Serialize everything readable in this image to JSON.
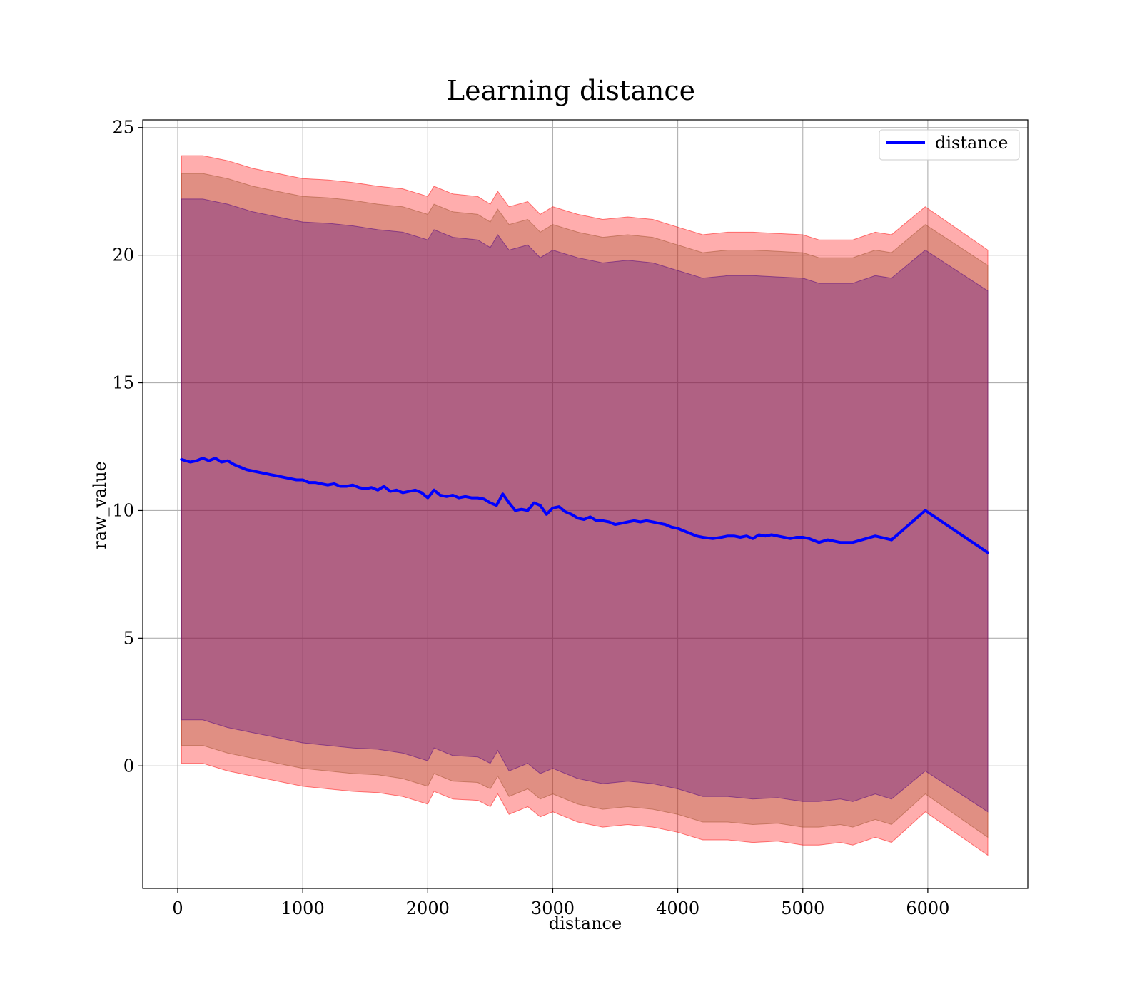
{
  "chart_data": {
    "type": "line",
    "title": "Learning distance",
    "xlabel": "distance",
    "ylabel": "raw_value",
    "xlim": [
      -280,
      6800
    ],
    "ylim": [
      -4.8,
      25.3
    ],
    "xticks": [
      0,
      1000,
      2000,
      3000,
      4000,
      5000,
      6000
    ],
    "yticks": [
      0,
      5,
      10,
      15,
      20,
      25
    ],
    "x_tick_labels": [
      "0",
      "1000",
      "2000",
      "3000",
      "4000",
      "5000",
      "6000"
    ],
    "y_tick_labels": [
      "0",
      "5",
      "10",
      "15",
      "20",
      "25"
    ],
    "grid": true,
    "legend": {
      "position": "upper right",
      "entries": [
        "distance"
      ]
    },
    "colors": {
      "line": "#0000ff",
      "band_outer": "#ff0000",
      "band_middle": "#a0522d",
      "band_inner": "#4b0082",
      "grid": "#b0b0b0"
    },
    "series": [
      {
        "name": "distance",
        "x": [
          30,
          100,
          150,
          200,
          250,
          300,
          350,
          400,
          450,
          500,
          550,
          600,
          650,
          700,
          750,
          800,
          850,
          900,
          950,
          1000,
          1050,
          1100,
          1150,
          1200,
          1250,
          1300,
          1350,
          1400,
          1450,
          1500,
          1550,
          1600,
          1650,
          1700,
          1750,
          1800,
          1850,
          1900,
          1950,
          2000,
          2050,
          2100,
          2150,
          2200,
          2250,
          2300,
          2350,
          2400,
          2450,
          2500,
          2550,
          2600,
          2650,
          2700,
          2750,
          2800,
          2850,
          2900,
          2950,
          3000,
          3050,
          3100,
          3150,
          3200,
          3250,
          3300,
          3350,
          3400,
          3450,
          3500,
          3550,
          3600,
          3650,
          3700,
          3750,
          3800,
          3850,
          3900,
          3950,
          4000,
          4050,
          4100,
          4150,
          4200,
          4280,
          4350,
          4400,
          4450,
          4500,
          4550,
          4600,
          4650,
          4700,
          4750,
          4800,
          4850,
          4900,
          4950,
          5000,
          5050,
          5130,
          5200,
          5300,
          5400,
          5580,
          5710,
          5980,
          6480
        ],
        "y": [
          12.0,
          11.9,
          11.95,
          12.05,
          11.95,
          12.05,
          11.9,
          11.95,
          11.8,
          11.7,
          11.6,
          11.55,
          11.5,
          11.45,
          11.4,
          11.35,
          11.3,
          11.25,
          11.2,
          11.2,
          11.1,
          11.1,
          11.05,
          11.0,
          11.05,
          10.95,
          10.95,
          11.0,
          10.9,
          10.85,
          10.9,
          10.8,
          10.95,
          10.75,
          10.8,
          10.7,
          10.75,
          10.8,
          10.7,
          10.5,
          10.8,
          10.6,
          10.55,
          10.6,
          10.5,
          10.55,
          10.5,
          10.5,
          10.45,
          10.3,
          10.2,
          10.65,
          10.3,
          10.0,
          10.05,
          10.0,
          10.3,
          10.2,
          9.85,
          10.1,
          10.15,
          9.95,
          9.85,
          9.7,
          9.65,
          9.75,
          9.6,
          9.6,
          9.55,
          9.45,
          9.5,
          9.55,
          9.6,
          9.55,
          9.6,
          9.55,
          9.5,
          9.45,
          9.35,
          9.3,
          9.2,
          9.1,
          9.0,
          8.95,
          8.9,
          8.95,
          9.0,
          9.0,
          8.95,
          9.0,
          8.9,
          9.05,
          9.0,
          9.05,
          9.0,
          8.95,
          8.9,
          8.95,
          8.95,
          8.9,
          8.75,
          8.85,
          8.75,
          8.75,
          9.0,
          8.85,
          10.0,
          8.35
        ]
      }
    ],
    "bands": [
      {
        "level": "outer",
        "x": [
          30,
          200,
          400,
          600,
          800,
          1000,
          1200,
          1400,
          1600,
          1800,
          2000,
          2050,
          2200,
          2400,
          2500,
          2560,
          2650,
          2800,
          2900,
          3000,
          3200,
          3400,
          3600,
          3800,
          4000,
          4200,
          4400,
          4600,
          4800,
          5000,
          5130,
          5300,
          5400,
          5580,
          5710,
          5980,
          6480
        ],
        "upper": [
          23.9,
          23.9,
          23.7,
          23.4,
          23.2,
          23.0,
          22.95,
          22.85,
          22.7,
          22.6,
          22.3,
          22.7,
          22.4,
          22.3,
          22.0,
          22.5,
          21.9,
          22.1,
          21.6,
          21.9,
          21.6,
          21.4,
          21.5,
          21.4,
          21.1,
          20.8,
          20.9,
          20.9,
          20.85,
          20.8,
          20.6,
          20.6,
          20.6,
          20.9,
          20.8,
          21.9,
          20.2
        ],
        "lower": [
          0.1,
          0.1,
          -0.2,
          -0.4,
          -0.6,
          -0.8,
          -0.9,
          -1.0,
          -1.05,
          -1.2,
          -1.5,
          -1.0,
          -1.3,
          -1.35,
          -1.6,
          -1.1,
          -1.9,
          -1.6,
          -2.0,
          -1.8,
          -2.2,
          -2.4,
          -2.3,
          -2.4,
          -2.6,
          -2.9,
          -2.9,
          -3.0,
          -2.95,
          -3.1,
          -3.1,
          -3.0,
          -3.1,
          -2.8,
          -3.0,
          -1.8,
          -3.5
        ]
      },
      {
        "level": "middle",
        "x": [
          30,
          200,
          400,
          600,
          800,
          1000,
          1200,
          1400,
          1600,
          1800,
          2000,
          2050,
          2200,
          2400,
          2500,
          2560,
          2650,
          2800,
          2900,
          3000,
          3200,
          3400,
          3600,
          3800,
          4000,
          4200,
          4400,
          4600,
          4800,
          5000,
          5130,
          5300,
          5400,
          5580,
          5710,
          5980,
          6480
        ],
        "upper": [
          23.2,
          23.2,
          23.0,
          22.7,
          22.5,
          22.3,
          22.25,
          22.15,
          22.0,
          21.9,
          21.6,
          22.0,
          21.7,
          21.6,
          21.3,
          21.8,
          21.2,
          21.4,
          20.9,
          21.2,
          20.9,
          20.7,
          20.8,
          20.7,
          20.4,
          20.1,
          20.2,
          20.2,
          20.15,
          20.1,
          19.9,
          19.9,
          19.9,
          20.2,
          20.1,
          21.2,
          19.6
        ],
        "lower": [
          0.8,
          0.8,
          0.5,
          0.3,
          0.1,
          -0.1,
          -0.2,
          -0.3,
          -0.35,
          -0.5,
          -0.8,
          -0.3,
          -0.6,
          -0.65,
          -0.9,
          -0.4,
          -1.2,
          -0.9,
          -1.3,
          -1.1,
          -1.5,
          -1.7,
          -1.6,
          -1.7,
          -1.9,
          -2.2,
          -2.2,
          -2.3,
          -2.25,
          -2.4,
          -2.4,
          -2.3,
          -2.4,
          -2.1,
          -2.3,
          -1.1,
          -2.8
        ]
      },
      {
        "level": "inner",
        "x": [
          30,
          200,
          400,
          600,
          800,
          1000,
          1200,
          1400,
          1600,
          1800,
          2000,
          2050,
          2200,
          2400,
          2500,
          2560,
          2650,
          2800,
          2900,
          3000,
          3200,
          3400,
          3600,
          3800,
          4000,
          4200,
          4400,
          4600,
          4800,
          5000,
          5130,
          5300,
          5400,
          5580,
          5710,
          5980,
          6480
        ],
        "upper": [
          22.2,
          22.2,
          22.0,
          21.7,
          21.5,
          21.3,
          21.25,
          21.15,
          21.0,
          20.9,
          20.6,
          21.0,
          20.7,
          20.6,
          20.3,
          20.8,
          20.2,
          20.4,
          19.9,
          20.2,
          19.9,
          19.7,
          19.8,
          19.7,
          19.4,
          19.1,
          19.2,
          19.2,
          19.15,
          19.1,
          18.9,
          18.9,
          18.9,
          19.2,
          19.1,
          20.2,
          18.6
        ],
        "lower": [
          1.8,
          1.8,
          1.5,
          1.3,
          1.1,
          0.9,
          0.8,
          0.7,
          0.65,
          0.5,
          0.2,
          0.7,
          0.4,
          0.35,
          0.1,
          0.6,
          -0.2,
          0.1,
          -0.3,
          -0.1,
          -0.5,
          -0.7,
          -0.6,
          -0.7,
          -0.9,
          -1.2,
          -1.2,
          -1.3,
          -1.25,
          -1.4,
          -1.4,
          -1.3,
          -1.4,
          -1.1,
          -1.3,
          -0.2,
          -1.8
        ]
      }
    ]
  }
}
